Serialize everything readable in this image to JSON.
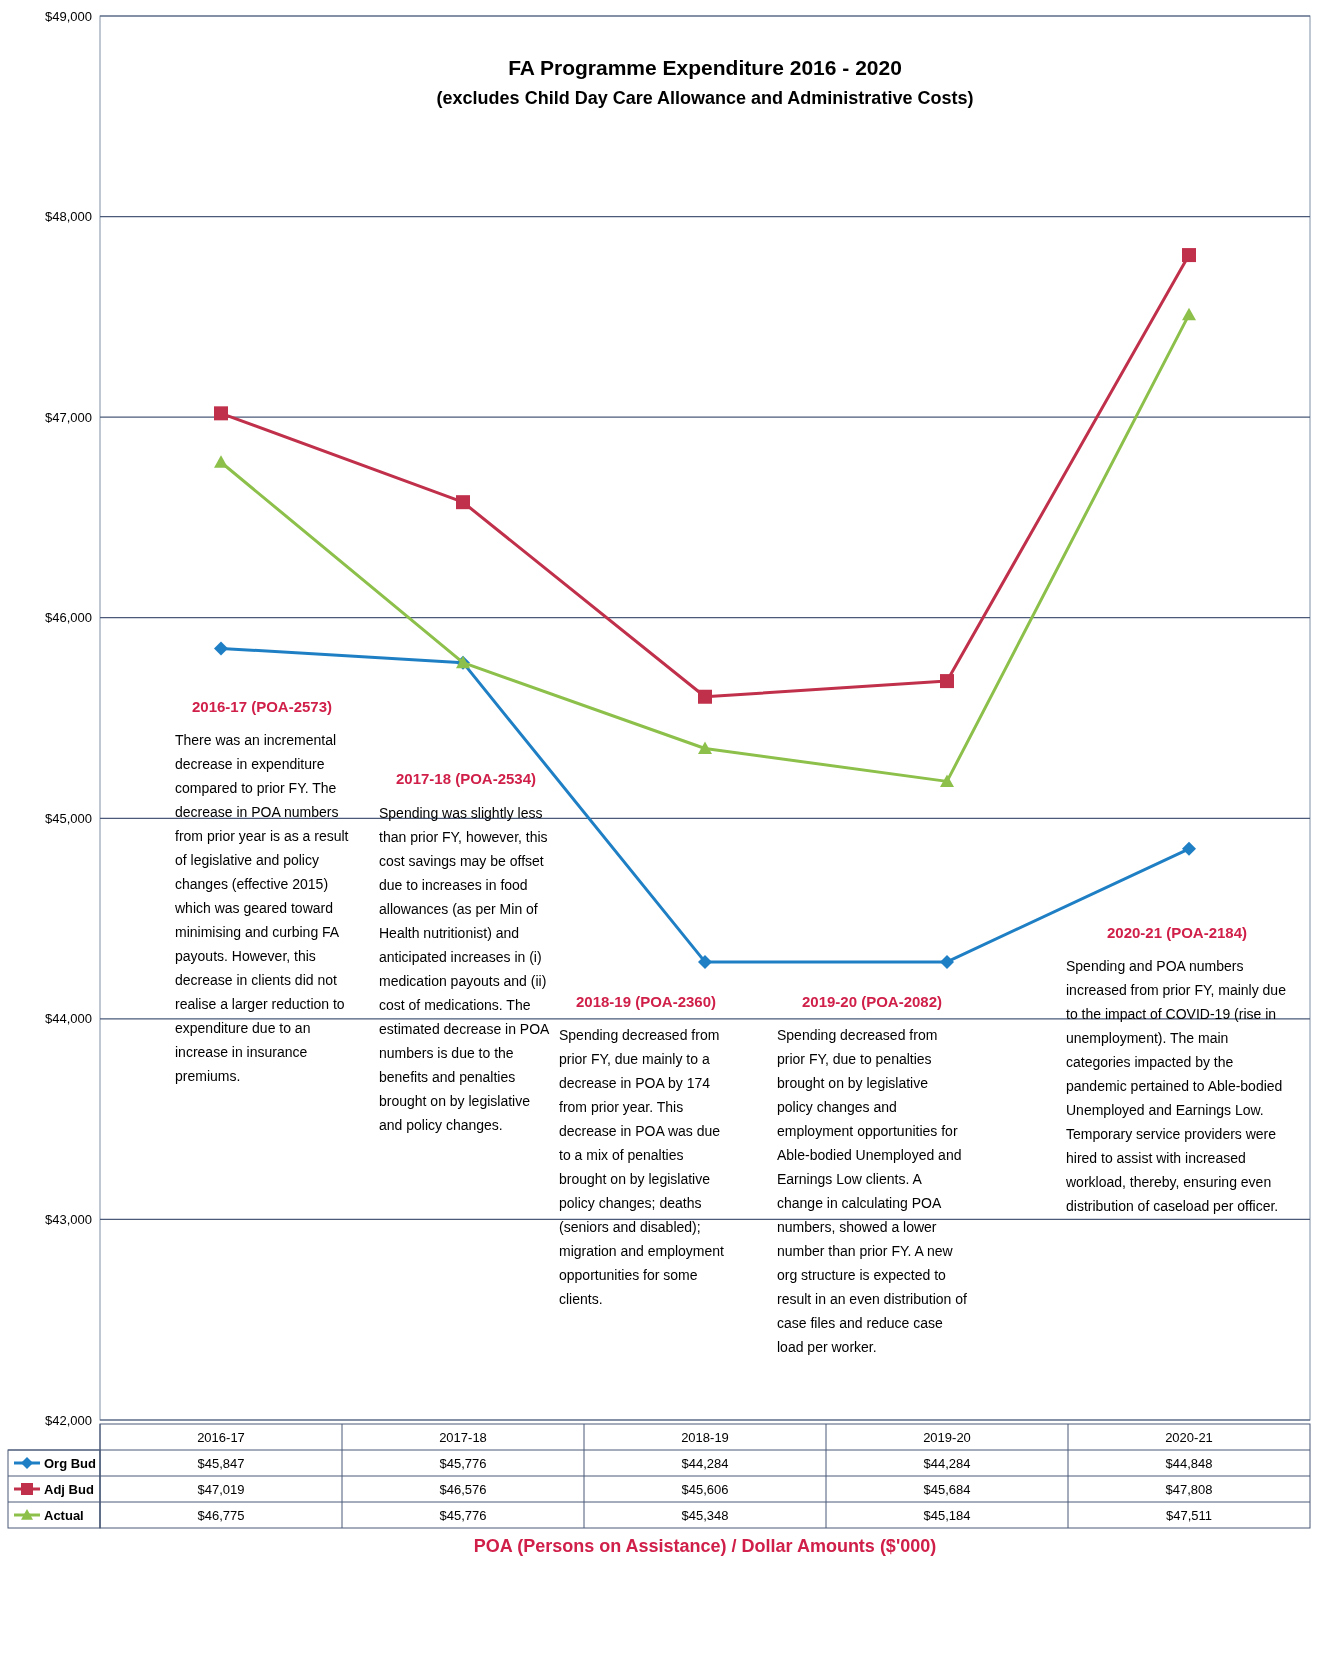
{
  "chart_data": {
    "type": "line",
    "title": "FA Programme Expenditure 2016 - 2020",
    "subtitle": "(excludes Child Day Care Allowance and Administrative Costs)",
    "categories": [
      "2016-17",
      "2017-18",
      "2018-19",
      "2019-20",
      "2020-21"
    ],
    "series": [
      {
        "name": "Org Bud",
        "color": "#1f7fc4",
        "marker": "diamond",
        "values": [
          45847,
          45776,
          44284,
          44284,
          44848
        ],
        "value_labels": [
          "$45,847",
          "$45,776",
          "$44,284",
          "$44,284",
          "$44,848"
        ]
      },
      {
        "name": "Adj Bud",
        "color": "#c0304a",
        "marker": "square",
        "values": [
          47019,
          46576,
          45606,
          45684,
          47808
        ],
        "value_labels": [
          "$47,019",
          "$46,576",
          "$45,606",
          "$45,684",
          "$47,808"
        ]
      },
      {
        "name": "Actual",
        "color": "#8cc04a",
        "marker": "triangle",
        "values": [
          46775,
          45776,
          45348,
          45184,
          47511
        ],
        "value_labels": [
          "$46,775",
          "$45,776",
          "$45,348",
          "$45,184",
          "$47,511"
        ]
      }
    ],
    "ylim": [
      42000,
      49000
    ],
    "yticks": [
      {
        "value": 42000,
        "label": "$42,000"
      },
      {
        "value": 43000,
        "label": "$43,000"
      },
      {
        "value": 44000,
        "label": "$44,000"
      },
      {
        "value": 45000,
        "label": "$45,000"
      },
      {
        "value": 46000,
        "label": "$46,000"
      },
      {
        "value": 47000,
        "label": "$47,000"
      },
      {
        "value": 48000,
        "label": "$48,000"
      },
      {
        "value": 49000,
        "label": "$49,000"
      }
    ],
    "grid": "y",
    "legend": "bottom",
    "annotations": [
      "2016-17 (POA-2573)",
      "There was an incremental decrease in expenditure compared to prior FY. The decrease in POA numbers from prior year is as a result of legislative and policy changes (effective 2015) which was geared toward minimising and curbing FA payouts. However, this decrease in clients did not realise a larger reduction to expenditure due to an increase in insurance premiums.",
      "2017-18 (POA-2534)",
      "Spending was slightly less than prior FY, however, this cost savings may be offset due to increases in food allowances (as per Min of Health nutritionist) and anticipated increases in (i) medication payouts and (ii) cost of medications. The estimated decrease in POA numbers is due to the benefits and penalties brought on by legislative and policy changes.",
      "2018-19 (POA-2360)",
      "Spending decreased from prior FY, due mainly to a decrease in POA by 174 from prior year. This decrease in POA was due to a mix of penalties brought on by legislative policy changes; deaths (seniors and disabled); migration and employment opportunities for some clients.",
      "2019-20 (POA-2082)",
      "Spending decreased from prior FY, due to penalties brought on by legislative policy changes and employment opportunities for Able-bodied Unemployed and Earnings Low clients. A change in calculating POA numbers, showed a lower number than prior FY. A new org structure is expected to result in an even distribution of case files and reduce case load per worker.",
      "2020-21 (POA-2184)",
      "Spending and POA numbers increased from prior FY, mainly due to the impact of COVID-19 (rise in unemployment). The main categories impacted by the pandemic pertained to Able-bodied Unemployed and Earnings Low. Temporary service providers were hired to assist with increased workload, thereby, ensuring even distribution of caseload per officer.",
      "POA (Persons on Assistance) / Dollar Amounts ($'000)"
    ]
  }
}
